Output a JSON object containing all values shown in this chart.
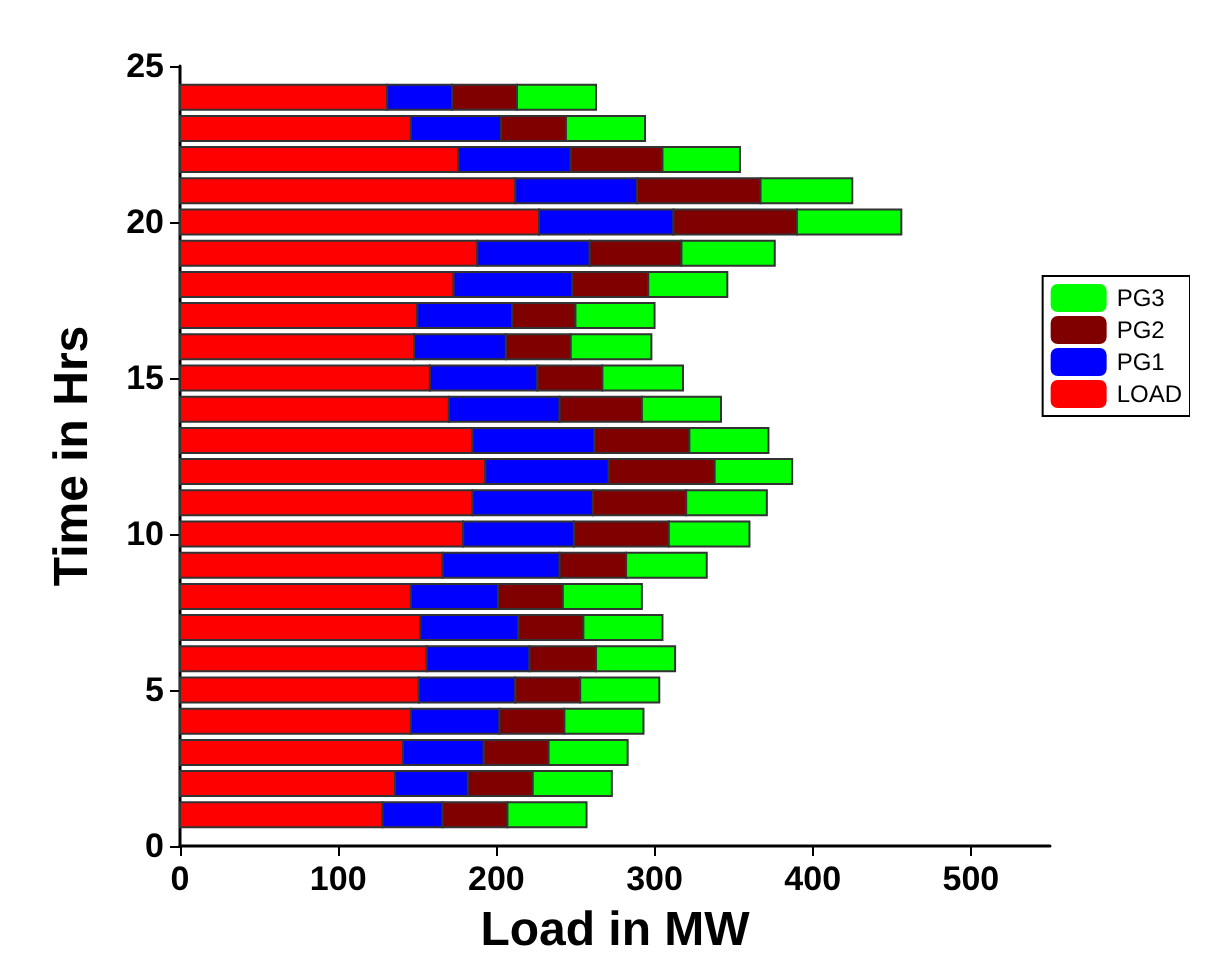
{
  "chart_data": {
    "type": "bar",
    "orientation": "horizontal",
    "stacked": true,
    "xlabel": "Load in MW",
    "ylabel": "Time in Hrs",
    "x": [
      1,
      2,
      3,
      4,
      5,
      6,
      7,
      8,
      9,
      10,
      11,
      12,
      13,
      14,
      15,
      16,
      17,
      18,
      19,
      20,
      21,
      22,
      23,
      24
    ],
    "series": [
      {
        "name": "LOAD",
        "color": "#ff0000",
        "values": [
          128,
          136,
          141,
          146,
          151,
          156,
          152,
          146,
          166,
          179,
          185,
          193,
          185,
          170,
          158,
          148,
          150,
          173,
          188,
          227,
          212,
          176,
          146,
          131
        ]
      },
      {
        "name": "PG1",
        "color": "#0000ff",
        "values": [
          38,
          46,
          51,
          56,
          61,
          65,
          62,
          55,
          74,
          70,
          76,
          78,
          77,
          70,
          68,
          58,
          60,
          75,
          71,
          85,
          77,
          71,
          57,
          41
        ]
      },
      {
        "name": "PG2",
        "color": "#800000",
        "values": [
          41,
          41,
          41,
          41,
          41,
          42,
          41,
          41,
          42,
          60,
          59,
          67,
          60,
          52,
          41,
          41,
          40,
          48,
          58,
          78,
          78,
          58,
          41,
          41
        ]
      },
      {
        "name": "PG3",
        "color": "#00ff00",
        "values": [
          50,
          50,
          50,
          50,
          50,
          50,
          50,
          50,
          51,
          51,
          51,
          49,
          50,
          50,
          51,
          51,
          50,
          50,
          59,
          66,
          58,
          49,
          50,
          50
        ]
      }
    ],
    "xlim": [
      0,
      550
    ],
    "xticks": [
      0,
      100,
      200,
      300,
      400,
      500
    ],
    "ylim": [
      0,
      25
    ],
    "yticks": [
      0,
      5,
      10,
      15,
      20,
      25
    ],
    "legend": "right",
    "grid": false
  }
}
